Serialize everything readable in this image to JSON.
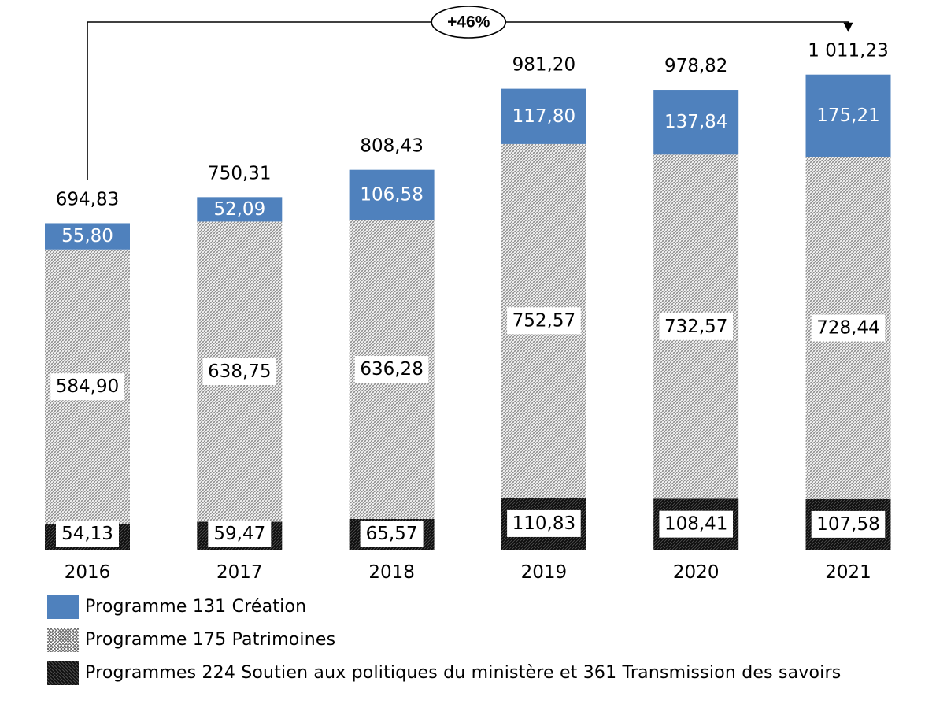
{
  "chart_data": {
    "type": "bar",
    "stacked": true,
    "categories": [
      "2016",
      "2017",
      "2018",
      "2019",
      "2020",
      "2021"
    ],
    "series": [
      {
        "name": "Programmes 224 Soutien aux politiques du ministère et 361 Transmission des savoirs",
        "values": [
          54.13,
          59.47,
          65.57,
          110.83,
          108.41,
          107.58
        ],
        "labels": [
          "54,13",
          "59,47",
          "65,57",
          "110,83",
          "108,41",
          "107,58"
        ],
        "color": "#111111",
        "pattern": "dark-dotted"
      },
      {
        "name": "Programme 175 Patrimoines",
        "values": [
          584.9,
          638.75,
          636.28,
          752.57,
          732.57,
          728.44
        ],
        "labels": [
          "584,90",
          "638,75",
          "636,28",
          "752,57",
          "732,57",
          "728,44"
        ],
        "color": "#6d6d6d",
        "pattern": "light-crosshatch"
      },
      {
        "name": "Programme 131 Création",
        "values": [
          55.8,
          52.09,
          106.58,
          117.8,
          137.84,
          175.21
        ],
        "labels": [
          "55,80",
          "52,09",
          "106,58",
          "117,80",
          "137,84",
          "175,21"
        ],
        "color": "#4f81bd",
        "pattern": "solid"
      }
    ],
    "totals": [
      694.83,
      750.31,
      808.43,
      981.2,
      978.82,
      1011.23
    ],
    "total_labels": [
      "694,83",
      "750,31",
      "808,43",
      "981,20",
      "978,82",
      "1 011,23"
    ],
    "annotation": {
      "text": "+46%",
      "from": "2016",
      "to": "2021"
    },
    "ylim": [
      0,
      1100
    ],
    "grid": false,
    "legend_position": "bottom"
  }
}
